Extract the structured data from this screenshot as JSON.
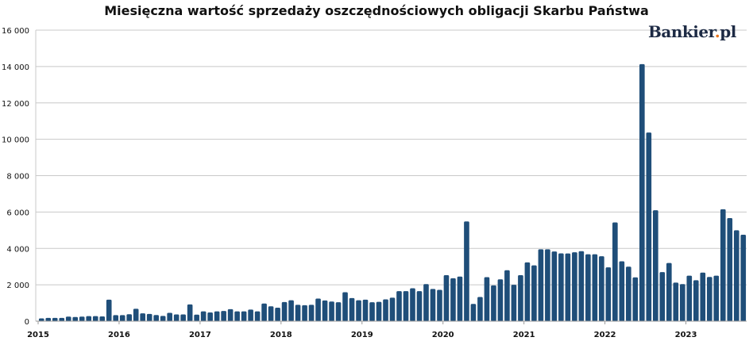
{
  "chart_data": {
    "type": "bar",
    "title": "Miesięczna wartość sprzedaży oszczędnościowych obligacji Skarbu Państwa",
    "xlabel": "",
    "ylabel": "",
    "ylim": [
      0,
      16000
    ],
    "yticks": [
      "0",
      "2 000",
      "4 000",
      "6 000",
      "8 000",
      "10 000",
      "12 000",
      "14 000",
      "16 000"
    ],
    "xticks": [
      "2015",
      "2016",
      "2017",
      "2018",
      "2019",
      "2020",
      "2021",
      "2022",
      "2023"
    ],
    "x_start": "2015-01",
    "x_end": "2023-09",
    "grid": true,
    "bar_color": "#1f4e79",
    "values": [
      150,
      180,
      180,
      180,
      250,
      230,
      250,
      280,
      280,
      260,
      1180,
      330,
      330,
      380,
      680,
      430,
      400,
      340,
      290,
      460,
      370,
      370,
      920,
      360,
      540,
      480,
      540,
      560,
      660,
      540,
      540,
      640,
      540,
      970,
      820,
      740,
      1050,
      1150,
      900,
      880,
      900,
      1240,
      1140,
      1080,
      1040,
      1590,
      1270,
      1150,
      1180,
      1040,
      1060,
      1200,
      1290,
      1650,
      1650,
      1810,
      1650,
      2040,
      1770,
      1720,
      2530,
      2360,
      2450,
      5480,
      950,
      1330,
      2420,
      1970,
      2300,
      2800,
      2000,
      2530,
      3230,
      3070,
      3950,
      3950,
      3830,
      3730,
      3720,
      3790,
      3850,
      3680,
      3680,
      3570,
      2960,
      5430,
      3290,
      3000,
      2410,
      14130,
      10370,
      6100,
      2700,
      3200,
      2120,
      2040,
      2500,
      2250,
      2670,
      2430,
      2500,
      6150,
      5670,
      5000,
      4750
    ]
  },
  "logo": {
    "text_main": "Bankier",
    "text_dot": ".",
    "text_tld": "pl",
    "dot_color": "#e8731c"
  }
}
